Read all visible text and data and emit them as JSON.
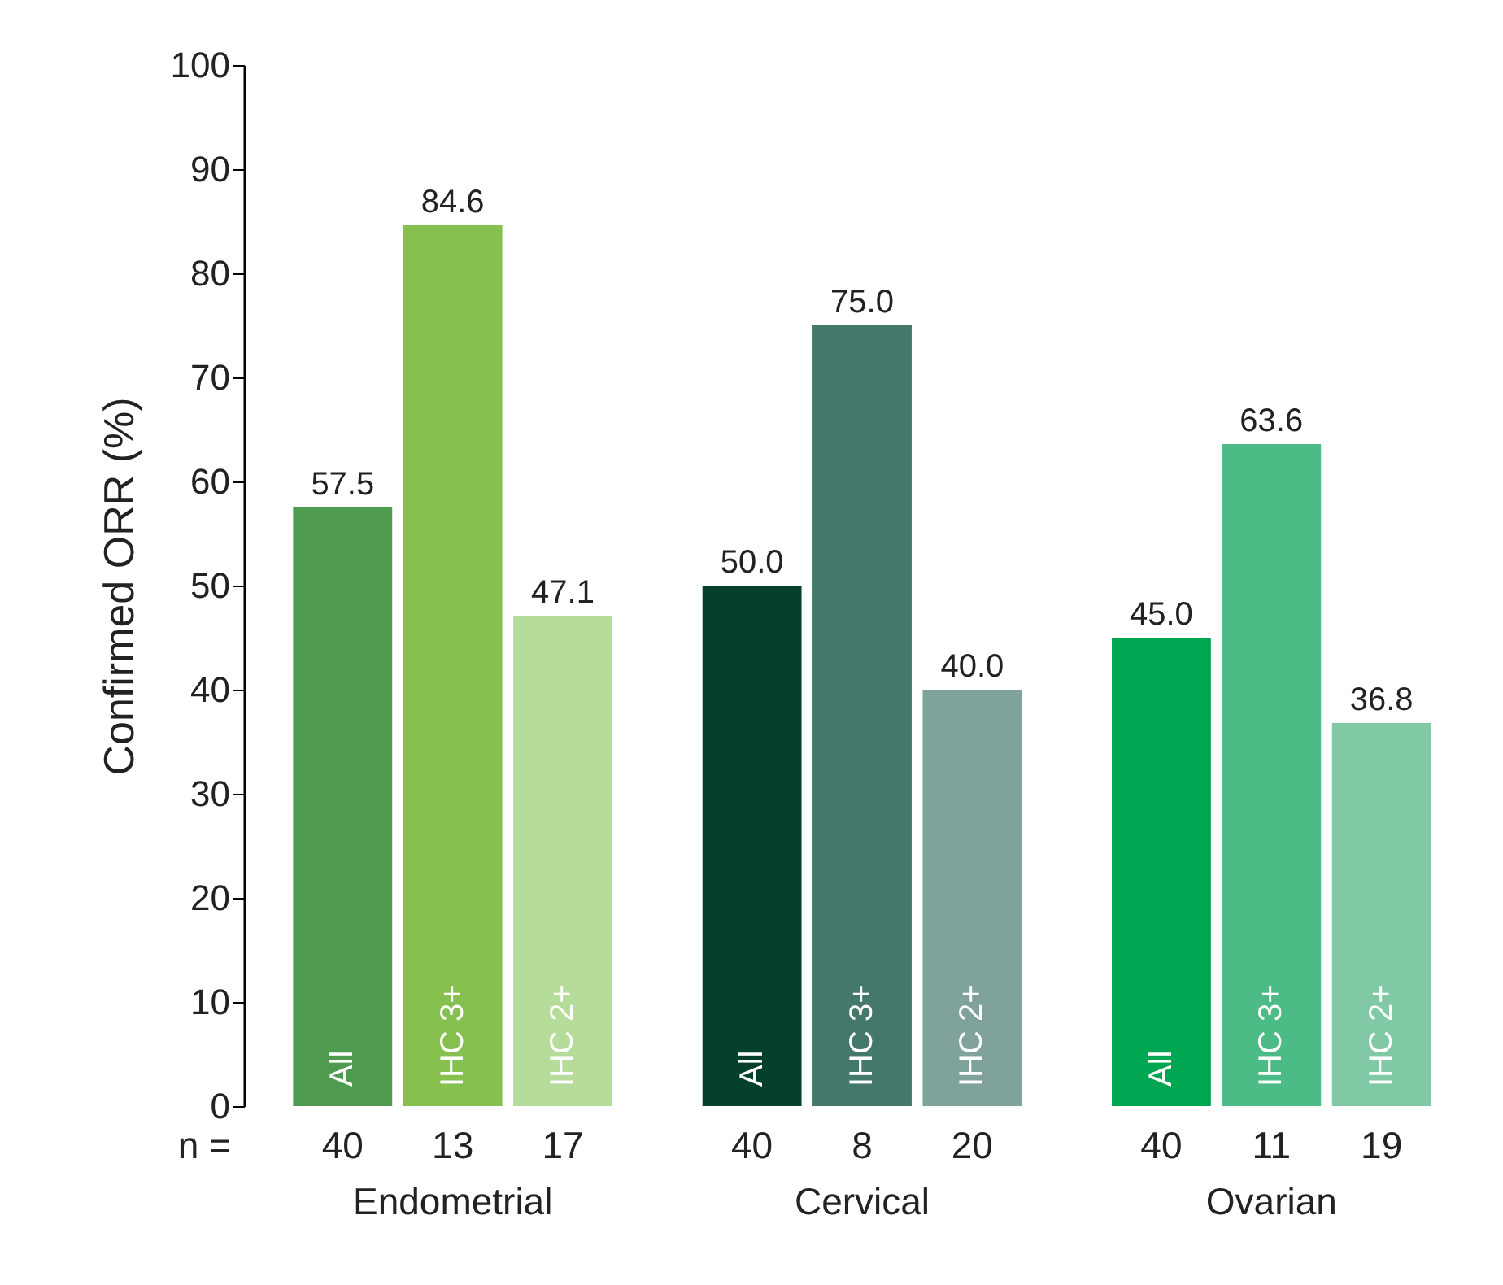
{
  "chart_data": {
    "type": "bar",
    "ylabel": "Confirmed ORR (%)",
    "categories": [
      "Endometrial",
      "Cervical",
      "Ovarian"
    ],
    "series": [
      {
        "name": "All",
        "colors": [
          "#4e9a4e",
          "#05402f",
          "#00a651"
        ],
        "values": [
          57.5,
          50.0,
          45.0
        ],
        "value_labels": [
          "57.5",
          "50.0",
          "45.0"
        ]
      },
      {
        "name": "IHC 3+",
        "colors": [
          "#86c150",
          "#44786a",
          "#4cbb86"
        ],
        "values": [
          84.6,
          75.0,
          63.6
        ],
        "value_labels": [
          "84.6",
          "75.0",
          "63.6"
        ]
      },
      {
        "name": "IHC 2+",
        "colors": [
          "#b5dc9a",
          "#7fa39a",
          "#80c9a4"
        ],
        "values": [
          47.1,
          40.0,
          36.8
        ],
        "value_labels": [
          "47.1",
          "40.0",
          "36.8"
        ]
      }
    ],
    "ylim": [
      0,
      100
    ],
    "yticks": [
      0,
      10,
      20,
      30,
      40,
      50,
      60,
      70,
      80,
      90,
      100
    ],
    "annotations": [
      "n =",
      "40",
      "13",
      "17",
      "40",
      "8",
      "20",
      "40",
      "11",
      "19"
    ]
  }
}
